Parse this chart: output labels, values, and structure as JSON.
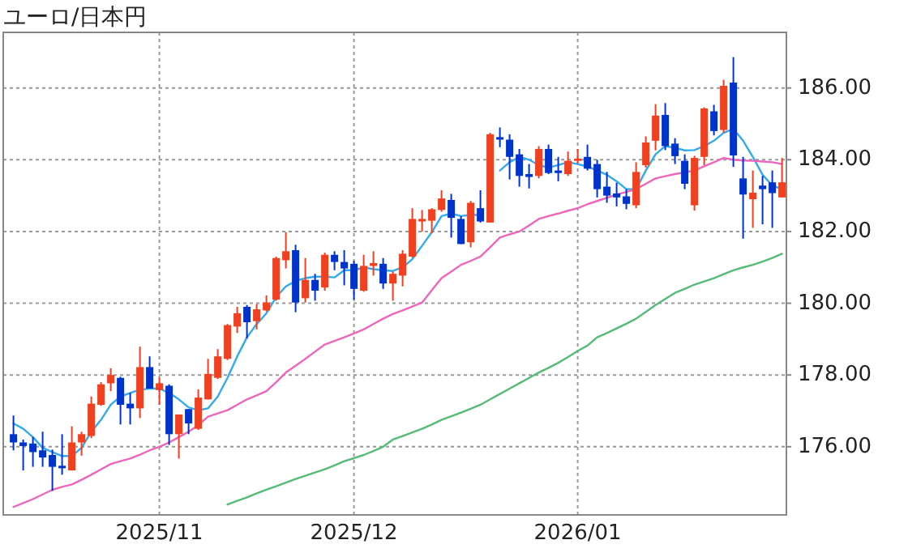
{
  "chart_data": {
    "type": "candlestick",
    "title": "ユーロ/日本円",
    "categories": [
      null,
      null,
      null,
      null,
      null,
      null,
      null,
      null,
      null,
      null,
      null,
      null,
      null,
      null,
      null,
      "2025/11",
      null,
      null,
      null,
      null,
      null,
      null,
      null,
      null,
      null,
      null,
      null,
      null,
      null,
      null,
      null,
      null,
      null,
      null,
      null,
      "2025/12",
      null,
      null,
      null,
      null,
      null,
      null,
      null,
      null,
      null,
      null,
      null,
      null,
      null,
      null,
      null,
      null,
      null,
      null,
      null,
      null,
      null,
      null,
      "2026/01",
      null,
      null,
      null,
      null,
      null,
      null,
      null,
      null,
      null,
      null,
      null,
      null,
      null,
      null,
      null,
      null,
      null,
      null,
      null,
      null,
      null
    ],
    "ohlc": [
      [
        176.35,
        176.87,
        175.9,
        176.12
      ],
      [
        176.12,
        176.2,
        175.34,
        176.02
      ],
      [
        176.09,
        176.27,
        175.44,
        175.85
      ],
      [
        175.9,
        176.42,
        175.44,
        175.7
      ],
      [
        175.77,
        175.92,
        174.77,
        175.44
      ],
      [
        175.47,
        176.35,
        175.22,
        175.4
      ],
      [
        175.34,
        176.57,
        175.34,
        176.12
      ],
      [
        176.12,
        176.42,
        175.75,
        176.35
      ],
      [
        176.3,
        177.4,
        176.24,
        177.2
      ],
      [
        177.17,
        177.8,
        177.14,
        177.74
      ],
      [
        177.77,
        178.19,
        177.55,
        178.0
      ],
      [
        177.92,
        177.95,
        176.62,
        177.17
      ],
      [
        177.2,
        177.5,
        176.62,
        177.07
      ],
      [
        177.07,
        178.79,
        176.8,
        178.22
      ],
      [
        178.22,
        178.52,
        177.62,
        177.62
      ],
      [
        177.58,
        177.92,
        177.17,
        177.77
      ],
      [
        177.7,
        177.74,
        176.05,
        176.35
      ],
      [
        176.35,
        176.9,
        175.67,
        176.9
      ],
      [
        177.05,
        177.05,
        176.35,
        176.65
      ],
      [
        176.5,
        177.6,
        176.47,
        177.37
      ],
      [
        177.32,
        178.45,
        177.32,
        178.03
      ],
      [
        177.92,
        178.72,
        177.89,
        178.52
      ],
      [
        178.45,
        179.42,
        178.42,
        179.39
      ],
      [
        179.35,
        179.9,
        179.17,
        179.72
      ],
      [
        179.9,
        179.95,
        179.02,
        179.47
      ],
      [
        179.5,
        179.98,
        179.27,
        179.83
      ],
      [
        179.8,
        180.22,
        179.77,
        180.02
      ],
      [
        180.1,
        181.3,
        180.07,
        181.26
      ],
      [
        181.2,
        181.98,
        180.97,
        181.45
      ],
      [
        181.48,
        181.63,
        179.75,
        180.02
      ],
      [
        180.14,
        181.26,
        180.02,
        180.65
      ],
      [
        180.65,
        180.82,
        180.07,
        180.35
      ],
      [
        180.44,
        181.41,
        180.35,
        181.35
      ],
      [
        181.35,
        181.45,
        180.92,
        181.15
      ],
      [
        181.15,
        181.48,
        180.5,
        180.97
      ],
      [
        181.1,
        181.18,
        180.1,
        180.4
      ],
      [
        180.35,
        181.35,
        180.32,
        181.04
      ],
      [
        181.04,
        181.45,
        180.77,
        181.12
      ],
      [
        181.1,
        181.26,
        180.4,
        180.55
      ],
      [
        180.55,
        180.88,
        180.07,
        180.82
      ],
      [
        180.77,
        181.48,
        180.47,
        181.38
      ],
      [
        181.3,
        182.65,
        181.27,
        182.35
      ],
      [
        182.28,
        182.6,
        182.0,
        182.35
      ],
      [
        182.3,
        182.65,
        181.95,
        182.62
      ],
      [
        182.6,
        183.15,
        182.55,
        182.92
      ],
      [
        182.88,
        183.05,
        181.83,
        182.38
      ],
      [
        182.35,
        182.43,
        181.65,
        181.65
      ],
      [
        181.7,
        182.85,
        181.56,
        182.8
      ],
      [
        182.65,
        183.15,
        182.25,
        182.28
      ],
      [
        182.25,
        184.75,
        182.25,
        184.71
      ],
      [
        184.63,
        184.9,
        184.35,
        184.56
      ],
      [
        184.56,
        184.71,
        183.45,
        184.08
      ],
      [
        184.15,
        184.3,
        183.25,
        183.55
      ],
      [
        183.6,
        183.88,
        183.2,
        183.52
      ],
      [
        183.55,
        184.38,
        183.48,
        184.3
      ],
      [
        184.3,
        184.42,
        183.6,
        183.63
      ],
      [
        183.7,
        184.08,
        183.4,
        183.63
      ],
      [
        183.6,
        184.23,
        183.55,
        183.97
      ],
      [
        183.97,
        184.3,
        183.9,
        184.03
      ],
      [
        184.08,
        184.42,
        183.7,
        183.75
      ],
      [
        183.88,
        184.0,
        182.95,
        183.18
      ],
      [
        183.25,
        183.66,
        182.8,
        183.0
      ],
      [
        183.06,
        183.36,
        182.7,
        182.95
      ],
      [
        182.98,
        183.18,
        182.62,
        182.77
      ],
      [
        182.73,
        183.93,
        182.65,
        183.66
      ],
      [
        183.85,
        184.65,
        183.78,
        184.48
      ],
      [
        184.53,
        185.55,
        184.26,
        185.23
      ],
      [
        185.25,
        185.58,
        184.27,
        184.38
      ],
      [
        184.45,
        184.6,
        183.88,
        184.1
      ],
      [
        183.97,
        184.15,
        183.18,
        183.33
      ],
      [
        182.73,
        184.11,
        182.58,
        184.05
      ],
      [
        184.08,
        185.46,
        183.85,
        185.43
      ],
      [
        185.35,
        185.53,
        184.68,
        184.8
      ],
      [
        184.83,
        186.23,
        184.75,
        186.06
      ],
      [
        186.15,
        186.86,
        183.8,
        184.12
      ],
      [
        183.48,
        184.08,
        181.8,
        183.03
      ],
      [
        182.9,
        183.7,
        182.1,
        183.08
      ],
      [
        183.28,
        183.55,
        182.2,
        183.18
      ],
      [
        183.37,
        183.7,
        182.1,
        183.07
      ],
      [
        182.95,
        184.05,
        182.95,
        183.37
      ]
    ],
    "colors": [
      "#0033cc",
      "#0033cc",
      "#0033cc",
      "#0033cc",
      "#0033cc",
      "#0033cc",
      "#f04020",
      "#f04020",
      "#f04020",
      "#f04020",
      "#f04020",
      "#0033cc",
      "#0033cc",
      "#f04020",
      "#0033cc",
      "#f04020",
      "#0033cc",
      "#f04020",
      "#0033cc",
      "#f04020",
      "#f04020",
      "#f04020",
      "#f04020",
      "#f04020",
      "#0033cc",
      "#f04020",
      "#f04020",
      "#f04020",
      "#f04020",
      "#0033cc",
      "#f04020",
      "#0033cc",
      "#f04020",
      "#0033cc",
      "#0033cc",
      "#0033cc",
      "#f04020",
      "#f04020",
      "#0033cc",
      "#f04020",
      "#f04020",
      "#f04020",
      "#f04020",
      "#f04020",
      "#f04020",
      "#0033cc",
      "#0033cc",
      "#f04020",
      "#0033cc",
      "#f04020",
      "#0033cc",
      "#0033cc",
      "#0033cc",
      "#0033cc",
      "#f04020",
      "#0033cc",
      "#0033cc",
      "#f04020",
      "#f04020",
      "#0033cc",
      "#0033cc",
      "#0033cc",
      "#0033cc",
      "#0033cc",
      "#f04020",
      "#f04020",
      "#f04020",
      "#0033cc",
      "#0033cc",
      "#0033cc",
      "#f04020",
      "#f04020",
      "#0033cc",
      "#f04020",
      "#0033cc",
      "#0033cc",
      "#f04020",
      "#0033cc",
      "#0033cc",
      "#f04020"
    ],
    "series": [
      {
        "type": "line",
        "color": "#33aaee",
        "values": [
          176.65,
          176.5,
          176.27,
          175.97,
          175.85,
          175.74,
          175.74,
          175.97,
          176.42,
          176.75,
          177.17,
          177.4,
          177.5,
          177.59,
          177.62,
          177.62,
          177.5,
          177.32,
          177.1,
          177.02,
          177.07,
          177.4,
          177.92,
          178.52,
          179.05,
          179.42,
          179.72,
          180.17,
          180.47,
          180.62,
          180.7,
          180.74,
          180.74,
          180.72,
          180.92,
          180.92,
          181.0,
          180.95,
          180.92,
          180.9,
          181.0,
          181.23,
          181.6,
          181.98,
          182.43,
          182.5,
          182.43,
          182.46,
          182.46,
          null,
          183.7,
          183.93,
          184.08,
          184.0,
          183.85,
          183.78,
          183.85,
          183.93,
          183.88,
          183.81,
          183.7,
          183.58,
          183.4,
          183.18,
          183.18,
          183.7,
          184.15,
          184.38,
          184.33,
          184.26,
          184.27,
          184.38,
          184.53,
          184.75,
          184.86,
          184.53,
          184.08,
          183.58,
          183.28,
          183.18
        ]
      },
      {
        "type": "line",
        "color": "#ee66bb",
        "values": [
          174.32,
          174.43,
          174.54,
          174.67,
          174.8,
          174.88,
          174.95,
          175.08,
          175.22,
          175.37,
          175.52,
          175.6,
          175.67,
          175.78,
          175.9,
          176.0,
          176.12,
          176.27,
          176.42,
          176.6,
          176.84,
          176.93,
          177.02,
          177.17,
          177.32,
          177.43,
          177.55,
          177.8,
          178.07,
          178.26,
          178.45,
          178.65,
          178.85,
          178.95,
          179.05,
          179.16,
          179.27,
          179.42,
          179.57,
          179.7,
          179.8,
          179.91,
          180.02,
          180.36,
          180.7,
          180.88,
          181.07,
          181.18,
          181.3,
          181.56,
          181.83,
          181.92,
          182.0,
          182.17,
          182.35,
          182.43,
          182.5,
          182.58,
          182.65,
          182.76,
          182.85,
          182.94,
          183.03,
          183.1,
          183.18,
          183.33,
          183.48,
          183.54,
          183.6,
          183.65,
          183.7,
          183.82,
          183.93,
          184.05,
          184.0,
          183.98,
          183.97,
          183.95,
          183.93,
          183.88
        ]
      },
      {
        "type": "line",
        "color": "#55bb77",
        "values": [
          null,
          null,
          null,
          null,
          null,
          null,
          null,
          null,
          null,
          null,
          null,
          null,
          null,
          null,
          null,
          null,
          null,
          null,
          null,
          null,
          null,
          null,
          174.39,
          174.49,
          174.59,
          174.7,
          174.8,
          174.9,
          175.0,
          175.1,
          175.19,
          175.28,
          175.37,
          175.48,
          175.6,
          175.68,
          175.77,
          175.88,
          176.0,
          176.2,
          176.3,
          176.4,
          176.5,
          176.62,
          176.75,
          176.85,
          176.95,
          177.06,
          177.17,
          177.32,
          177.47,
          177.62,
          177.77,
          177.92,
          178.07,
          178.2,
          178.34,
          178.5,
          178.67,
          178.82,
          179.05,
          179.17,
          179.3,
          179.43,
          179.57,
          179.76,
          179.95,
          180.12,
          180.29,
          180.4,
          180.52,
          180.61,
          180.7,
          180.81,
          180.92,
          181.0,
          181.07,
          181.16,
          181.26,
          181.38
        ]
      }
    ],
    "ylim": [
      174.1,
      187.55
    ],
    "yticks": [
      {
        "value": 176,
        "label": "176.00"
      },
      {
        "value": 178,
        "label": "178.00"
      },
      {
        "value": 180,
        "label": "180.00"
      },
      {
        "value": 182,
        "label": "182.00"
      },
      {
        "value": 184,
        "label": "184.00"
      },
      {
        "value": 186,
        "label": "186.00"
      }
    ],
    "grid": true,
    "line_style": "solid"
  }
}
